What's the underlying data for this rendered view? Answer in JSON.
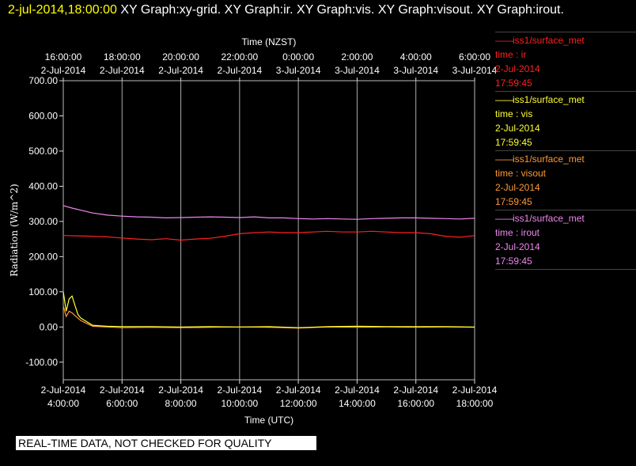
{
  "header": {
    "date": "2-jul-2014,18:00:00",
    "text": "XY Graph:xy-grid.  XY Graph:ir.  XY Graph:vis.  XY Graph:visout.  XY Graph:irout."
  },
  "banner": "REAL-TIME DATA, NOT CHECKED FOR QUALITY",
  "legend": [
    {
      "color": "#ff2020",
      "station": "iss1/surface_met",
      "label": "time : ir",
      "date": "2-Jul-2014",
      "time": "17:59:45"
    },
    {
      "color": "#ffff33",
      "station": "iss1/surface_met",
      "label": "time : vis",
      "date": "2-Jul-2014",
      "time": "17:59:45"
    },
    {
      "color": "#ff9933",
      "station": "iss1/surface_met",
      "label": "time : visout",
      "date": "2-Jul-2014",
      "time": "17:59:45"
    },
    {
      "color": "#ee88ee",
      "station": "iss1/surface_met",
      "label": "time : irout",
      "date": "2-Jul-2014",
      "time": "17:59:45"
    }
  ],
  "chart_data": {
    "type": "line",
    "ylabel": "Radiation  (W/m^2)",
    "xlabel": "Time (UTC)",
    "top_axis_title": "Time (NZST)",
    "ylim": [
      -150,
      700
    ],
    "xlim": [
      4,
      18
    ],
    "grid": true,
    "yticks": [
      "700.00",
      "600.00",
      "500.00",
      "400.00",
      "300.00",
      "200.00",
      "100.00",
      "0.00",
      "-100.00"
    ],
    "ytick_values": [
      700,
      600,
      500,
      400,
      300,
      200,
      100,
      0,
      -100
    ],
    "xtick_values": [
      4,
      6,
      8,
      10,
      12,
      14,
      16,
      18
    ],
    "xtick_dates": [
      "2-Jul-2014",
      "2-Jul-2014",
      "2-Jul-2014",
      "2-Jul-2014",
      "2-Jul-2014",
      "2-Jul-2014",
      "2-Jul-2014",
      "2-Jul-2014"
    ],
    "xtick_times": [
      "4:00:00",
      "6:00:00",
      "8:00:00",
      "10:00:00",
      "12:00:00",
      "14:00:00",
      "16:00:00",
      "18:00:00"
    ],
    "top_tick_times": [
      "16:00:00",
      "18:00:00",
      "20:00:00",
      "22:00:00",
      "0:00:00",
      "2:00:00",
      "4:00:00",
      "6:00:00"
    ],
    "top_tick_dates": [
      "2-Jul-2014",
      "2-Jul-2014",
      "2-Jul-2014",
      "2-Jul-2014",
      "3-Jul-2014",
      "3-Jul-2014",
      "3-Jul-2014",
      "3-Jul-2014"
    ],
    "series": [
      {
        "name": "ir",
        "color": "#ff2020",
        "x": [
          4,
          4.5,
          5,
          5.5,
          6,
          6.5,
          7,
          7.5,
          8,
          8.5,
          9,
          9.5,
          10,
          10.5,
          11,
          11.5,
          12,
          12.5,
          13,
          13.5,
          14,
          14.5,
          15,
          15.5,
          16,
          16.5,
          17,
          17.5,
          18
        ],
        "y": [
          260,
          259,
          258,
          256,
          253,
          250,
          248,
          251,
          247,
          250,
          252,
          258,
          265,
          268,
          270,
          268,
          268,
          270,
          272,
          270,
          270,
          272,
          270,
          268,
          268,
          265,
          258,
          255,
          260
        ]
      },
      {
        "name": "irout",
        "color": "#ee88ee",
        "x": [
          4,
          4.3,
          4.6,
          5,
          5.5,
          6,
          6.5,
          7,
          7.5,
          8,
          8.5,
          9,
          9.5,
          10,
          10.5,
          11,
          11.5,
          12,
          12.5,
          13,
          13.5,
          14,
          14.5,
          15,
          15.5,
          16,
          16.5,
          17,
          17.5,
          18
        ],
        "y": [
          345,
          338,
          332,
          324,
          318,
          315,
          313,
          312,
          310,
          311,
          312,
          313,
          312,
          311,
          313,
          310,
          310,
          308,
          307,
          308,
          307,
          306,
          308,
          309,
          310,
          310,
          309,
          308,
          307,
          309
        ]
      },
      {
        "name": "vis",
        "color": "#ffff33",
        "x": [
          4,
          4.1,
          4.2,
          4.3,
          4.4,
          4.5,
          4.6,
          4.8,
          5,
          5.5,
          6,
          7,
          8,
          9,
          10,
          11,
          12,
          13,
          14,
          15,
          16,
          17,
          18
        ],
        "y": [
          100,
          45,
          80,
          88,
          60,
          35,
          25,
          15,
          5,
          2,
          1,
          1,
          0,
          1,
          0,
          1,
          -2,
          1,
          2,
          1,
          1,
          1,
          0
        ]
      },
      {
        "name": "visout",
        "color": "#ff9933",
        "x": [
          4,
          4.1,
          4.2,
          4.3,
          4.4,
          4.5,
          4.6,
          4.8,
          5,
          5.5,
          6,
          7,
          8,
          9,
          10,
          11,
          12,
          13,
          14,
          15,
          16,
          17,
          18
        ],
        "y": [
          60,
          30,
          45,
          40,
          32,
          25,
          18,
          10,
          2,
          0,
          -2,
          -1,
          -2,
          -1,
          0,
          -1,
          -3,
          0,
          -1,
          0,
          -1,
          0,
          -1
        ]
      }
    ]
  }
}
